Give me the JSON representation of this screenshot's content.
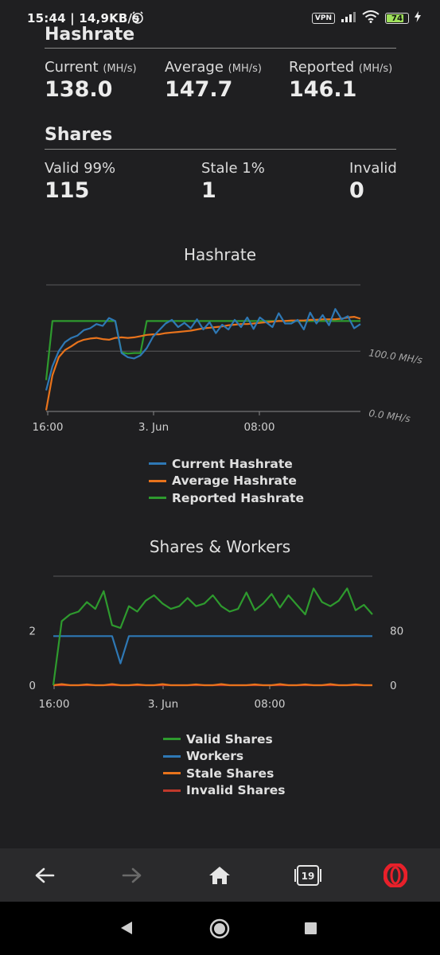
{
  "status_bar": {
    "time_speed": "15:44 | 14,9KB/s",
    "vpn": "VPN",
    "battery": "74"
  },
  "hashrate_section": {
    "title": "Hashrate",
    "stats": [
      {
        "label": "Current",
        "unit": "(MH/s)",
        "value": "138.0"
      },
      {
        "label": "Average",
        "unit": "(MH/s)",
        "value": "147.7"
      },
      {
        "label": "Reported",
        "unit": "(MH/s)",
        "value": "146.1"
      }
    ]
  },
  "shares_section": {
    "title": "Shares",
    "stats": [
      {
        "label": "Valid 99%",
        "value": "115"
      },
      {
        "label": "Stale 1%",
        "value": "1"
      },
      {
        "label": "Invalid",
        "value": "0"
      }
    ]
  },
  "chart_data": [
    {
      "type": "line",
      "title": "Hashrate",
      "x_ticks": [
        "16:00",
        "3. Jun",
        "08:00"
      ],
      "y_ticks": [
        "0.0 MH/s",
        "100.0 MH/s"
      ],
      "ylim": [
        0,
        210
      ],
      "grid": true,
      "legend_position": "bottom",
      "series": [
        {
          "name": "Current Hashrate",
          "color": "#2e78b5",
          "values": [
            35,
            75,
            100,
            115,
            122,
            126,
            135,
            138,
            145,
            142,
            155,
            150,
            97,
            90,
            88,
            93,
            105,
            124,
            135,
            146,
            152,
            140,
            147,
            138,
            153,
            136,
            148,
            130,
            144,
            136,
            152,
            140,
            156,
            137,
            156,
            148,
            140,
            163,
            146,
            146,
            152,
            136,
            164,
            146,
            160,
            143,
            170,
            153,
            158,
            138,
            145
          ]
        },
        {
          "name": "Average Hashrate",
          "color": "#e8731c",
          "values": [
            2,
            60,
            90,
            102,
            108,
            115,
            119,
            121,
            122,
            120,
            119,
            122,
            123,
            122,
            123,
            125,
            127,
            128,
            128,
            130,
            131,
            132,
            133,
            134,
            136,
            138,
            139,
            140,
            141,
            143,
            144,
            145,
            145,
            146,
            147,
            148,
            149,
            150,
            150,
            151,
            151,
            151,
            152,
            152,
            153,
            153,
            153,
            154,
            156,
            157,
            154
          ]
        },
        {
          "name": "Reported Hashrate",
          "color": "#2e9a2e",
          "values": [
            52,
            150,
            150,
            150,
            150,
            150,
            150,
            150,
            150,
            150,
            150,
            150,
            98,
            96,
            97,
            97,
            150,
            150,
            150,
            150,
            150,
            150,
            150,
            150,
            150,
            150,
            150,
            150,
            150,
            150,
            150,
            150,
            150,
            150,
            150,
            150,
            150,
            150,
            150,
            150,
            150,
            150,
            150,
            150,
            150,
            150,
            150,
            150,
            150,
            150,
            150
          ]
        }
      ]
    },
    {
      "type": "line",
      "title": "Shares & Workers",
      "x_ticks": [
        "16:00",
        "3. Jun",
        "08:00"
      ],
      "y_left_ticks": [
        "0",
        "2"
      ],
      "y_right_ticks": [
        "0",
        "80"
      ],
      "ylim": [
        0,
        4
      ],
      "grid": true,
      "legend_position": "bottom",
      "series": [
        {
          "name": "Valid Shares",
          "color": "#2e9a2e",
          "values": [
            0,
            2.35,
            2.6,
            2.7,
            3.05,
            2.8,
            3.45,
            2.2,
            2.1,
            2.9,
            2.7,
            3.1,
            3.3,
            3.0,
            2.8,
            2.9,
            3.2,
            2.9,
            3.0,
            3.3,
            2.9,
            2.7,
            2.8,
            3.4,
            2.75,
            3.0,
            3.35,
            2.85,
            3.3,
            2.95,
            2.6,
            3.55,
            3.05,
            2.9,
            3.1,
            3.55,
            2.75,
            2.95,
            2.6
          ]
        },
        {
          "name": "Workers",
          "color": "#2e78b5",
          "values": [
            1.8,
            1.8,
            1.8,
            1.8,
            1.8,
            1.8,
            1.8,
            1.8,
            0.8,
            1.8,
            1.8,
            1.8,
            1.8,
            1.8,
            1.8,
            1.8,
            1.8,
            1.8,
            1.8,
            1.8,
            1.8,
            1.8,
            1.8,
            1.8,
            1.8,
            1.8,
            1.8,
            1.8,
            1.8,
            1.8,
            1.8,
            1.8,
            1.8,
            1.8,
            1.8,
            1.8,
            1.8,
            1.8,
            1.8
          ]
        },
        {
          "name": "Stale Shares",
          "color": "#e8731c",
          "values": [
            0,
            0.04,
            0,
            0,
            0.03,
            0,
            0,
            0.04,
            0,
            0,
            0.03,
            0,
            0,
            0.04,
            0,
            0,
            0,
            0.03,
            0,
            0,
            0.04,
            0,
            0,
            0,
            0.03,
            0,
            0,
            0.04,
            0,
            0,
            0.03,
            0,
            0,
            0.04,
            0,
            0,
            0.03,
            0,
            0
          ]
        },
        {
          "name": "Invalid Shares",
          "color": "#c0392b",
          "values": [
            0,
            0,
            0,
            0,
            0,
            0,
            0,
            0,
            0,
            0,
            0,
            0,
            0,
            0,
            0,
            0,
            0,
            0,
            0,
            0,
            0,
            0,
            0,
            0,
            0,
            0,
            0,
            0,
            0,
            0,
            0,
            0,
            0,
            0,
            0,
            0,
            0,
            0,
            0
          ]
        }
      ]
    }
  ],
  "browser_nav": {
    "tab_count": "19",
    "icons": [
      "back-arrow-icon",
      "forward-arrow-icon",
      "home-icon",
      "tabs-icon",
      "opera-icon"
    ]
  },
  "system_nav": {
    "icons": [
      "back-triangle-icon",
      "home-circle-icon",
      "recents-square-icon"
    ]
  }
}
